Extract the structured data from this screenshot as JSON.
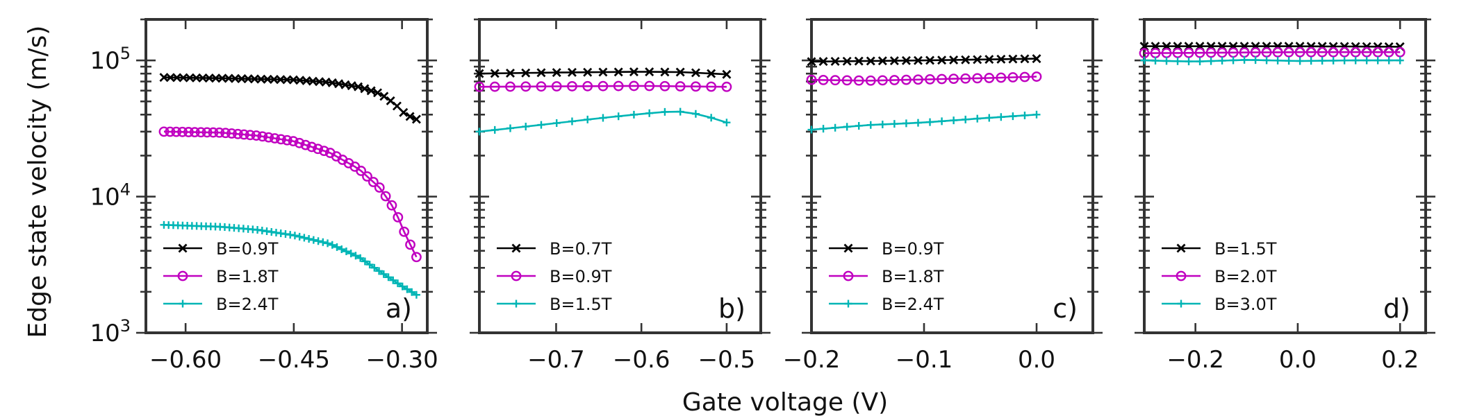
{
  "colors": {
    "black_series": "#000000",
    "magenta_series": "#c000c0",
    "cyan_series": "#00b5b5",
    "frame": "#333333"
  },
  "chart_data": {
    "type": "line",
    "title": "",
    "xlabel": "Gate voltage (V)",
    "ylabel": "Edge state velocity (m/s)",
    "yscale": "log",
    "ylim": [
      1000,
      200000
    ],
    "yticks": [
      1000,
      10000,
      100000
    ],
    "ytick_labels": [
      {
        "base": "10",
        "exp": "3"
      },
      {
        "base": "10",
        "exp": "4"
      },
      {
        "base": "10",
        "exp": "5"
      }
    ],
    "legend_location": "lower-left",
    "panels": [
      {
        "label": "a)",
        "xlim": [
          -0.655,
          -0.265
        ],
        "xticks": [
          -0.6,
          -0.45,
          -0.3
        ],
        "xtick_labels": [
          "−0.60",
          "−0.45",
          "−0.30"
        ],
        "series": [
          {
            "name": "B=0.9T",
            "color": "#000000",
            "marker": "x",
            "x0": -0.63,
            "x1": -0.28,
            "n": 40,
            "points": [
              [
                -0.63,
                75000
              ],
              [
                -0.55,
                74000
              ],
              [
                -0.45,
                72000
              ],
              [
                -0.4,
                69000
              ],
              [
                -0.36,
                64000
              ],
              [
                -0.33,
                57000
              ],
              [
                -0.31,
                48000
              ],
              [
                -0.295,
                40000
              ],
              [
                -0.28,
                37000
              ]
            ]
          },
          {
            "name": "B=1.8T",
            "color": "#c000c0",
            "marker": "o",
            "x0": -0.63,
            "x1": -0.28,
            "n": 42,
            "points": [
              [
                -0.63,
                30000
              ],
              [
                -0.55,
                29500
              ],
              [
                -0.5,
                28000
              ],
              [
                -0.45,
                25500
              ],
              [
                -0.4,
                21000
              ],
              [
                -0.36,
                16000
              ],
              [
                -0.33,
                11500
              ],
              [
                -0.31,
                8000
              ],
              [
                -0.295,
                5200
              ],
              [
                -0.28,
                3600
              ]
            ]
          },
          {
            "name": "B=2.4T",
            "color": "#00b5b5",
            "marker": "+",
            "x0": -0.63,
            "x1": -0.28,
            "n": 55,
            "points": [
              [
                -0.63,
                6200
              ],
              [
                -0.55,
                6000
              ],
              [
                -0.5,
                5700
              ],
              [
                -0.45,
                5200
              ],
              [
                -0.4,
                4500
              ],
              [
                -0.36,
                3600
              ],
              [
                -0.33,
                2800
              ],
              [
                -0.3,
                2200
              ],
              [
                -0.28,
                1900
              ]
            ]
          }
        ]
      },
      {
        "label": "b)",
        "xlim": [
          -0.79,
          -0.46
        ],
        "xticks": [
          -0.7,
          -0.6,
          -0.5
        ],
        "xtick_labels": [
          "−0.7",
          "−0.6",
          "−0.5"
        ],
        "series": [
          {
            "name": "B=0.7T",
            "color": "#000000",
            "marker": "x",
            "x0": -0.79,
            "x1": -0.5,
            "n": 17,
            "points": [
              [
                -0.79,
                80000
              ],
              [
                -0.7,
                81500
              ],
              [
                -0.6,
                82500
              ],
              [
                -0.55,
                82000
              ],
              [
                -0.5,
                79000
              ]
            ]
          },
          {
            "name": "B=0.9T",
            "color": "#c000c0",
            "marker": "o",
            "x0": -0.79,
            "x1": -0.5,
            "n": 17,
            "points": [
              [
                -0.79,
                64000
              ],
              [
                -0.7,
                64500
              ],
              [
                -0.6,
                65000
              ],
              [
                -0.5,
                64000
              ]
            ]
          },
          {
            "name": "B=1.5T",
            "color": "#00b5b5",
            "marker": "+",
            "x0": -0.79,
            "x1": -0.5,
            "n": 17,
            "points": [
              [
                -0.79,
                30000
              ],
              [
                -0.72,
                33500
              ],
              [
                -0.66,
                37000
              ],
              [
                -0.6,
                40500
              ],
              [
                -0.56,
                42500
              ],
              [
                -0.53,
                40000
              ],
              [
                -0.5,
                35000
              ]
            ]
          }
        ]
      },
      {
        "label": "c)",
        "xlim": [
          -0.2,
          0.05
        ],
        "xticks": [
          -0.2,
          -0.1,
          0.0
        ],
        "xtick_labels": [
          "−0.2",
          "−0.1",
          "0.0"
        ],
        "series": [
          {
            "name": "B=0.9T",
            "color": "#000000",
            "marker": "x",
            "x0": -0.2,
            "x1": 0.0,
            "n": 20,
            "points": [
              [
                -0.2,
                98000
              ],
              [
                -0.1,
                100000
              ],
              [
                0.0,
                103000
              ]
            ]
          },
          {
            "name": "B=1.8T",
            "color": "#c000c0",
            "marker": "o",
            "x0": -0.2,
            "x1": 0.0,
            "n": 20,
            "points": [
              [
                -0.2,
                72000
              ],
              [
                -0.15,
                71000
              ],
              [
                -0.1,
                72500
              ],
              [
                -0.05,
                74000
              ],
              [
                0.0,
                76000
              ]
            ]
          },
          {
            "name": "B=2.4T",
            "color": "#00b5b5",
            "marker": "+",
            "x0": -0.2,
            "x1": 0.0,
            "n": 20,
            "points": [
              [
                -0.2,
                31000
              ],
              [
                -0.15,
                33500
              ],
              [
                -0.1,
                35000
              ],
              [
                -0.05,
                37500
              ],
              [
                0.0,
                40000
              ]
            ]
          }
        ]
      },
      {
        "label": "d)",
        "xlim": [
          -0.3,
          0.25
        ],
        "xticks": [
          -0.2,
          0.0,
          0.2
        ],
        "xtick_labels": [
          "−0.2",
          "0.0",
          "0.2"
        ],
        "series": [
          {
            "name": "B=1.5T",
            "color": "#000000",
            "marker": "x",
            "x0": -0.3,
            "x1": 0.2,
            "n": 24,
            "points": [
              [
                -0.3,
                127000
              ],
              [
                0.0,
                127000
              ],
              [
                0.2,
                126000
              ]
            ]
          },
          {
            "name": "B=2.0T",
            "color": "#c000c0",
            "marker": "o",
            "x0": -0.3,
            "x1": 0.2,
            "n": 24,
            "points": [
              [
                -0.3,
                113000
              ],
              [
                0.0,
                115000
              ],
              [
                0.2,
                115000
              ]
            ]
          },
          {
            "name": "B=3.0T",
            "color": "#00b5b5",
            "marker": "+",
            "x0": -0.3,
            "x1": 0.2,
            "n": 24,
            "points": [
              [
                -0.3,
                100000
              ],
              [
                -0.2,
                98000
              ],
              [
                -0.1,
                101000
              ],
              [
                0.0,
                99000
              ],
              [
                0.1,
                100000
              ],
              [
                0.2,
                100000
              ]
            ]
          }
        ]
      }
    ]
  }
}
